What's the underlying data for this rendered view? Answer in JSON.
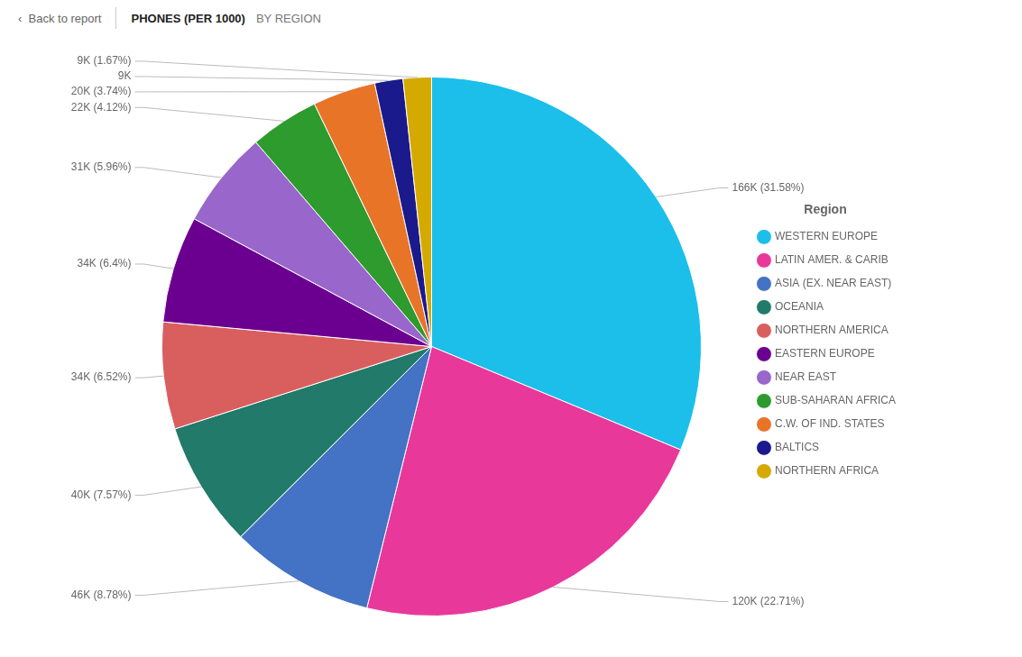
{
  "chart_data": {
    "type": "pie",
    "title": "PHONES (PER 1000)",
    "subtitle": "BY REGION",
    "annotations": [
      "‹  Back to report"
    ],
    "legend_title": "Region",
    "legend": "right",
    "categories": [
      "WESTERN EUROPE",
      "LATIN AMER. & CARIB",
      "ASIA (EX. NEAR EAST)",
      "OCEANIA",
      "NORTHERN AMERICA",
      "EASTERN EUROPE",
      "NEAR EAST",
      "SUB-SAHARAN AFRICA",
      "C.W. OF IND. STATES",
      "BALTICS",
      "NORTHERN AFRICA"
    ],
    "values": [
      166,
      120,
      46,
      40,
      34,
      34,
      31,
      22,
      20,
      9,
      9
    ],
    "value_labels": [
      "166K (31.58%)",
      "120K (22.71%)",
      "46K (8.78%)",
      "40K (7.57%)",
      "34K (6.52%)",
      "34K (6.4%)",
      "31K (5.96%)",
      "22K (4.12%)",
      "20K (3.74%)",
      "9K",
      "9K (1.67%)"
    ],
    "colors": [
      "#1BBFEA",
      "#E8389A",
      "#4472C4",
      "#217A6A",
      "#D95F5F",
      "#6B0090",
      "#9966CC",
      "#2D9B2D",
      "#E87428",
      "#1A1A8C",
      "#D4AA00"
    ],
    "data_labels": true
  }
}
